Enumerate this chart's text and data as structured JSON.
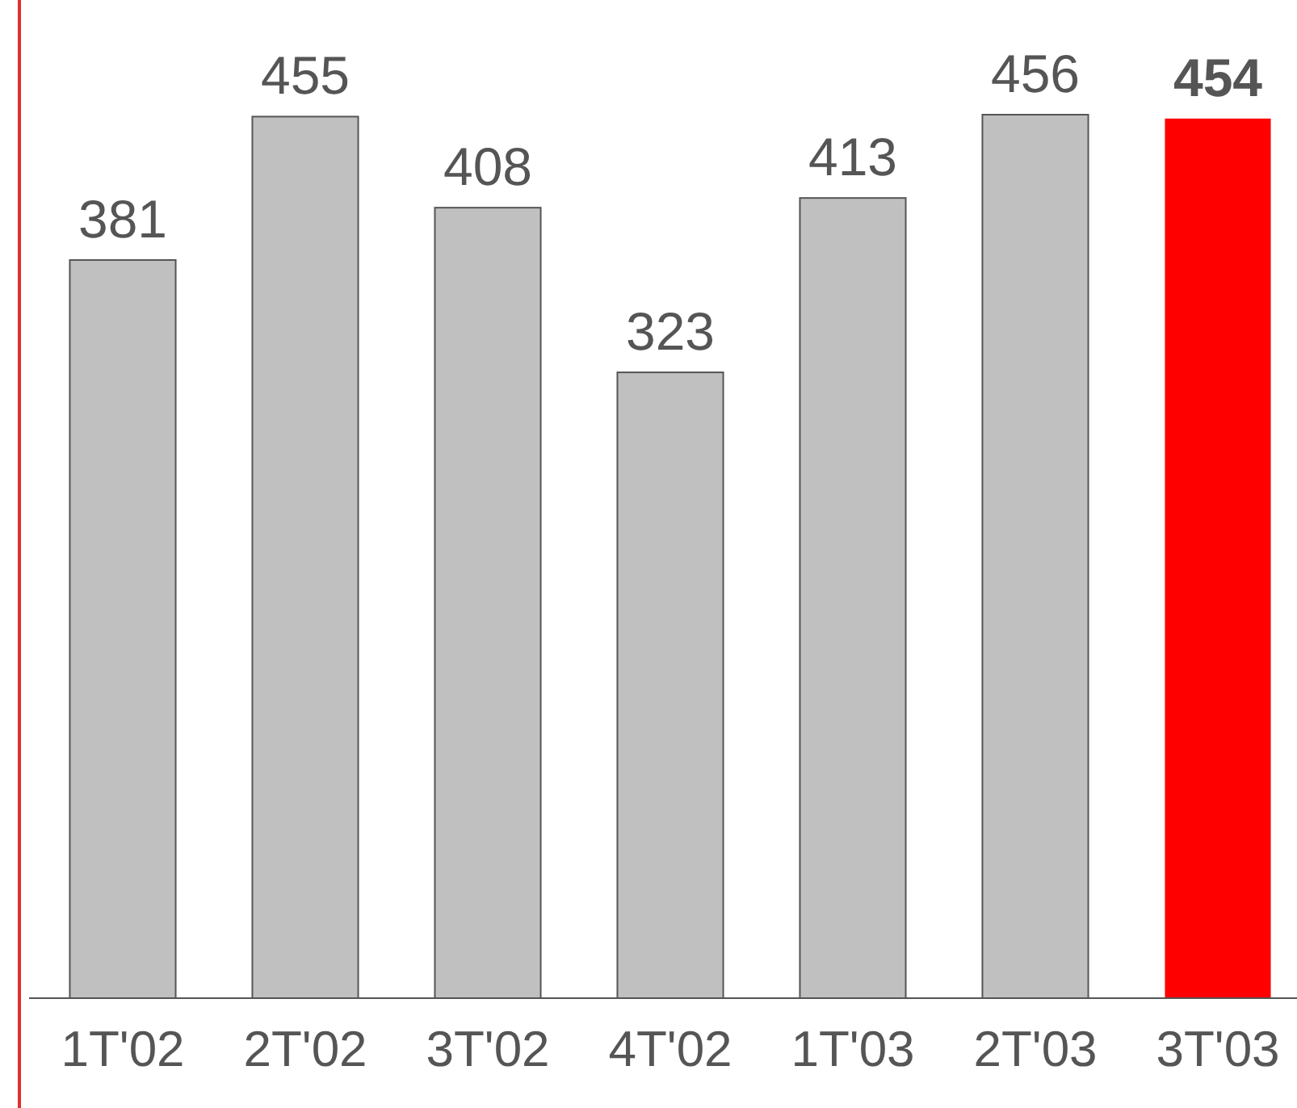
{
  "chart_data": {
    "type": "bar",
    "categories": [
      "1T'02",
      "2T'02",
      "3T'02",
      "4T'02",
      "1T'03",
      "2T'03",
      "3T'03"
    ],
    "values": [
      381,
      455,
      408,
      323,
      413,
      456,
      454
    ],
    "colors": [
      "#c0c0c0",
      "#c0c0c0",
      "#c0c0c0",
      "#c0c0c0",
      "#c0c0c0",
      "#c0c0c0",
      "#ff0000"
    ],
    "data_labels": true
  }
}
